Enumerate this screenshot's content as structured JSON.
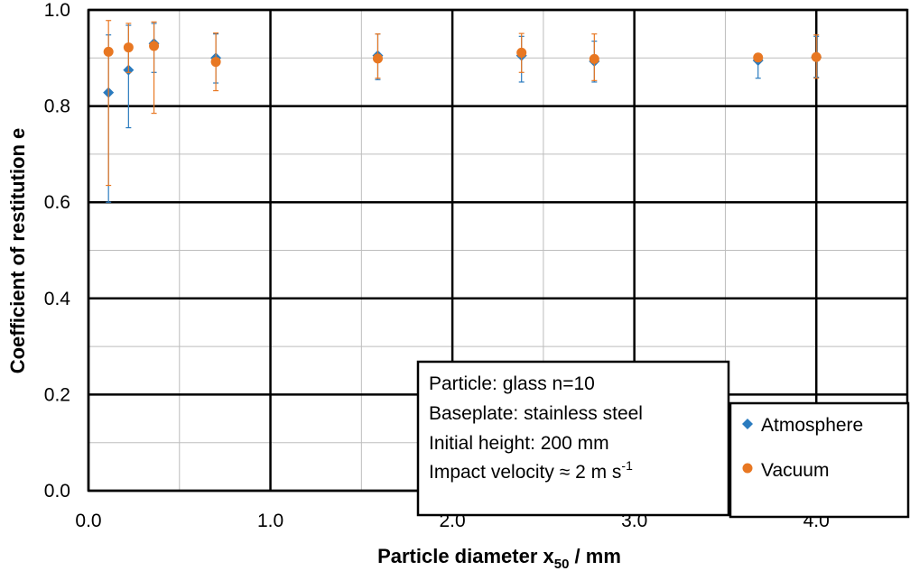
{
  "chart_data": {
    "type": "scatter",
    "title": "",
    "xlabel": {
      "main": "Particle diameter x",
      "sub": "50",
      "unit": " / mm"
    },
    "ylabel": "Coefficient of restitution e",
    "xlim": [
      0,
      4.5
    ],
    "ylim": [
      0,
      1.0
    ],
    "x_major_ticks": [
      0,
      1,
      2,
      3,
      4
    ],
    "x_minor_ticks": [
      0.5,
      1.5,
      2.5,
      3.5,
      4.5
    ],
    "y_major_ticks": [
      0,
      0.2,
      0.4,
      0.6,
      0.8,
      1.0
    ],
    "y_minor_ticks": [
      0.1,
      0.3,
      0.5,
      0.7,
      0.9
    ],
    "x_tick_labels": [
      "0.0",
      "1.0",
      "2.0",
      "3.0",
      "4.0"
    ],
    "y_tick_labels": [
      "0.0",
      "0.2",
      "0.4",
      "0.6",
      "0.8",
      "1.0"
    ],
    "series": [
      {
        "name": "Atmosphere",
        "color": "#2a7bbf",
        "marker": "diamond",
        "points": [
          {
            "x": 0.11,
            "y": 0.828,
            "lo": 0.6,
            "hi": 0.948
          },
          {
            "x": 0.22,
            "y": 0.875,
            "lo": 0.755,
            "hi": 0.968
          },
          {
            "x": 0.36,
            "y": 0.93,
            "lo": 0.87,
            "hi": 0.972
          },
          {
            "x": 0.7,
            "y": 0.9,
            "lo": 0.848,
            "hi": 0.95
          },
          {
            "x": 1.59,
            "y": 0.905,
            "lo": 0.855,
            "hi": 0.95
          },
          {
            "x": 2.38,
            "y": 0.905,
            "lo": 0.85,
            "hi": 0.945
          },
          {
            "x": 2.78,
            "y": 0.893,
            "lo": 0.85,
            "hi": 0.935
          },
          {
            "x": 3.68,
            "y": 0.895,
            "lo": 0.858,
            "hi": 0.9
          },
          {
            "x": 4.0,
            "y": 0.902,
            "lo": 0.86,
            "hi": 0.945
          }
        ]
      },
      {
        "name": "Vacuum",
        "color": "#e87722",
        "marker": "circle",
        "points": [
          {
            "x": 0.11,
            "y": 0.913,
            "lo": 0.635,
            "hi": 0.978
          },
          {
            "x": 0.22,
            "y": 0.922,
            "lo": 0.87,
            "hi": 0.972
          },
          {
            "x": 0.36,
            "y": 0.925,
            "lo": 0.785,
            "hi": 0.975
          },
          {
            "x": 0.7,
            "y": 0.892,
            "lo": 0.832,
            "hi": 0.952
          },
          {
            "x": 1.59,
            "y": 0.899,
            "lo": 0.858,
            "hi": 0.95
          },
          {
            "x": 2.38,
            "y": 0.911,
            "lo": 0.87,
            "hi": 0.951
          },
          {
            "x": 2.78,
            "y": 0.898,
            "lo": 0.853,
            "hi": 0.95
          },
          {
            "x": 3.68,
            "y": 0.901,
            "lo": 0.9,
            "hi": 0.905
          },
          {
            "x": 4.0,
            "y": 0.902,
            "lo": 0.858,
            "hi": 0.948
          }
        ]
      }
    ],
    "annotation": {
      "lines": [
        "Particle: glass n=10",
        "Baseplate: stainless steel",
        "Initial height: 200 mm"
      ],
      "velocity_prefix": "Impact velocity ≈ 2 m s",
      "velocity_exponent": "-1"
    },
    "legend": {
      "position": "bottom-right",
      "entries": [
        "Atmosphere",
        "Vacuum"
      ]
    }
  }
}
